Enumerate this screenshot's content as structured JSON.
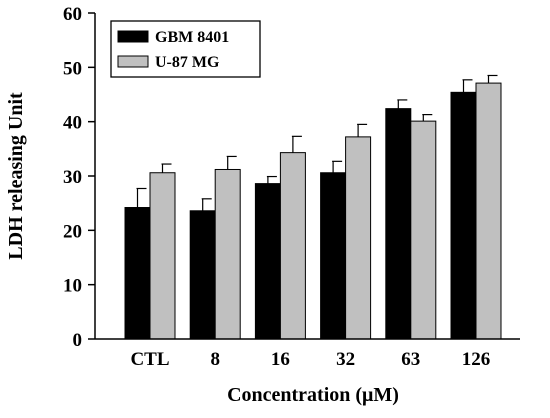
{
  "chart_data": {
    "type": "bar",
    "title": "",
    "xlabel": "Concentration (μM)",
    "ylabel": "LDH releasing Unit",
    "ylim": [
      0,
      60
    ],
    "yticks": [
      0,
      10,
      20,
      30,
      40,
      50,
      60
    ],
    "categories": [
      "CTL",
      "8",
      "16",
      "32",
      "63",
      "126"
    ],
    "series": [
      {
        "name": "GBM 8401",
        "color": "#000000",
        "values": [
          24.2,
          23.6,
          28.6,
          30.6,
          42.4,
          45.4
        ],
        "errors": [
          3.5,
          2.2,
          1.3,
          2.1,
          1.6,
          2.3
        ]
      },
      {
        "name": "U-87 MG",
        "color": "#c0c0c0",
        "values": [
          30.6,
          31.2,
          34.3,
          37.2,
          40.1,
          47.1
        ],
        "errors": [
          1.6,
          2.4,
          3.0,
          2.3,
          1.2,
          1.4
        ]
      }
    ],
    "legend_position": "top-left",
    "grid": false
  }
}
